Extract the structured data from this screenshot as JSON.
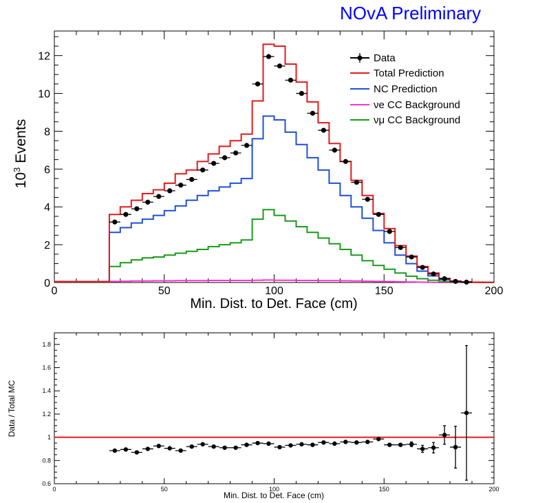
{
  "page_label": "NOvA Preliminary",
  "colors": {
    "data": "#000000",
    "total": "#e31a1c",
    "nc": "#1f4fd8",
    "nue": "#ff33cc",
    "numu": "#1a9a1a",
    "label": "#0000ff"
  },
  "chart_data": [
    {
      "type": "line",
      "panel": "main",
      "xlabel": "Min. Dist. to Det. Face (cm)",
      "ylabel_prefix": "10",
      "ylabel_exp": "3",
      "ylabel_suffix": " Events",
      "xlim": [
        0,
        200
      ],
      "ylim": [
        0,
        13.3
      ],
      "xticks": [
        0,
        50,
        100,
        150,
        200
      ],
      "yticks": [
        0,
        2,
        4,
        6,
        8,
        10,
        12
      ],
      "bin_edges": [
        0,
        5,
        10,
        15,
        20,
        25,
        30,
        35,
        40,
        45,
        50,
        55,
        60,
        65,
        70,
        75,
        80,
        85,
        90,
        95,
        100,
        105,
        110,
        115,
        120,
        125,
        130,
        135,
        140,
        145,
        150,
        155,
        160,
        165,
        170,
        175,
        180,
        185,
        190,
        195,
        200
      ],
      "legend": {
        "position": "top-right",
        "entries": [
          "Data",
          "Total Prediction",
          "NC Prediction",
          "νe CC Background",
          "νμ CC Background"
        ]
      },
      "series": [
        {
          "name": "Total Prediction",
          "key": "total",
          "values": [
            0.05,
            0.05,
            0.05,
            0.05,
            0.05,
            3.6,
            4.0,
            4.35,
            4.7,
            4.9,
            5.25,
            5.75,
            5.95,
            6.4,
            6.8,
            7.2,
            7.5,
            7.85,
            9.6,
            12.6,
            12.5,
            11.55,
            10.6,
            9.55,
            8.45,
            7.35,
            6.4,
            5.4,
            4.6,
            3.65,
            2.85,
            1.95,
            1.4,
            0.85,
            0.5,
            0.22,
            0.08,
            0.04,
            0.02,
            0.01
          ]
        },
        {
          "name": "NC Prediction",
          "key": "nc",
          "values": [
            0.05,
            0.05,
            0.05,
            0.05,
            0.05,
            2.65,
            2.9,
            3.15,
            3.35,
            3.55,
            3.8,
            4.05,
            4.35,
            4.6,
            4.85,
            5.05,
            5.25,
            5.5,
            7.6,
            8.8,
            8.6,
            7.95,
            7.3,
            6.6,
            5.95,
            5.25,
            4.6,
            4.0,
            3.4,
            2.75,
            2.1,
            1.45,
            1.0,
            0.6,
            0.35,
            0.15,
            0.05,
            0.03,
            0.02,
            0.01
          ]
        },
        {
          "name": "νμ CC Background",
          "key": "numu",
          "values": [
            0.02,
            0.02,
            0.02,
            0.02,
            0.02,
            0.85,
            1.05,
            1.2,
            1.3,
            1.35,
            1.45,
            1.55,
            1.65,
            1.75,
            1.9,
            2.0,
            2.1,
            2.25,
            3.35,
            3.85,
            3.55,
            3.25,
            2.95,
            2.65,
            2.35,
            2.05,
            1.75,
            1.45,
            1.15,
            0.9,
            0.7,
            0.5,
            0.33,
            0.2,
            0.12,
            0.05,
            0.02,
            0.01,
            0.01,
            0.0
          ]
        },
        {
          "name": "νe CC Background",
          "key": "nue",
          "values": [
            0.0,
            0.0,
            0.0,
            0.0,
            0.0,
            0.06,
            0.07,
            0.08,
            0.08,
            0.09,
            0.09,
            0.1,
            0.1,
            0.1,
            0.11,
            0.11,
            0.11,
            0.11,
            0.12,
            0.13,
            0.12,
            0.12,
            0.11,
            0.11,
            0.1,
            0.1,
            0.09,
            0.08,
            0.07,
            0.06,
            0.05,
            0.04,
            0.03,
            0.02,
            0.01,
            0.0,
            0.0,
            0.0,
            0.0,
            0.0
          ]
        }
      ],
      "data_points": {
        "name": "Data",
        "x": [
          27.5,
          32.5,
          37.5,
          42.5,
          47.5,
          52.5,
          57.5,
          62.5,
          67.5,
          72.5,
          77.5,
          82.5,
          87.5,
          92.5,
          97.5,
          102.5,
          107.5,
          112.5,
          117.5,
          122.5,
          127.5,
          132.5,
          137.5,
          142.5,
          147.5,
          152.5,
          157.5,
          162.5,
          167.5,
          172.5,
          177.5,
          182.5,
          187.5
        ],
        "y": [
          3.2,
          3.6,
          3.9,
          4.25,
          4.55,
          4.85,
          5.15,
          5.45,
          5.95,
          6.3,
          6.6,
          6.85,
          7.25,
          10.5,
          11.95,
          11.45,
          10.7,
          10.0,
          8.95,
          8.05,
          7.0,
          6.4,
          5.3,
          4.4,
          3.6,
          2.7,
          1.85,
          1.35,
          0.8,
          0.45,
          0.2,
          0.06,
          0.02
        ]
      }
    },
    {
      "type": "scatter",
      "panel": "ratio",
      "xlabel": "Min. Dist. to Det. Face (cm)",
      "ylabel": "Data / Total MC",
      "xlim": [
        0,
        200
      ],
      "ylim": [
        0.6,
        1.9
      ],
      "xticks": [
        0,
        50,
        100,
        150,
        200
      ],
      "yticks": [
        0.6,
        0.8,
        1,
        1.2,
        1.4,
        1.6,
        1.8
      ],
      "reference_line": 1,
      "x": [
        27.5,
        32.5,
        37.5,
        42.5,
        47.5,
        52.5,
        57.5,
        62.5,
        67.5,
        72.5,
        77.5,
        82.5,
        87.5,
        92.5,
        97.5,
        102.5,
        107.5,
        112.5,
        117.5,
        122.5,
        127.5,
        132.5,
        137.5,
        142.5,
        147.5,
        152.5,
        157.5,
        162.5,
        167.5,
        172.5,
        177.5,
        182.5,
        187.5
      ],
      "y": [
        0.885,
        0.895,
        0.87,
        0.9,
        0.925,
        0.905,
        0.885,
        0.92,
        0.94,
        0.92,
        0.91,
        0.91,
        0.935,
        0.95,
        0.945,
        0.915,
        0.93,
        0.94,
        0.935,
        0.955,
        0.945,
        0.96,
        0.955,
        0.96,
        0.985,
        0.935,
        0.935,
        0.94,
        0.9,
        0.91,
        1.02,
        0.915,
        1.21
      ],
      "yerr": [
        0.01,
        0.01,
        0.01,
        0.01,
        0.01,
        0.01,
        0.01,
        0.01,
        0.01,
        0.01,
        0.01,
        0.01,
        0.01,
        0.01,
        0.01,
        0.01,
        0.01,
        0.01,
        0.01,
        0.01,
        0.01,
        0.01,
        0.01,
        0.01,
        0.012,
        0.015,
        0.015,
        0.02,
        0.03,
        0.045,
        0.08,
        0.18,
        0.58
      ]
    }
  ]
}
